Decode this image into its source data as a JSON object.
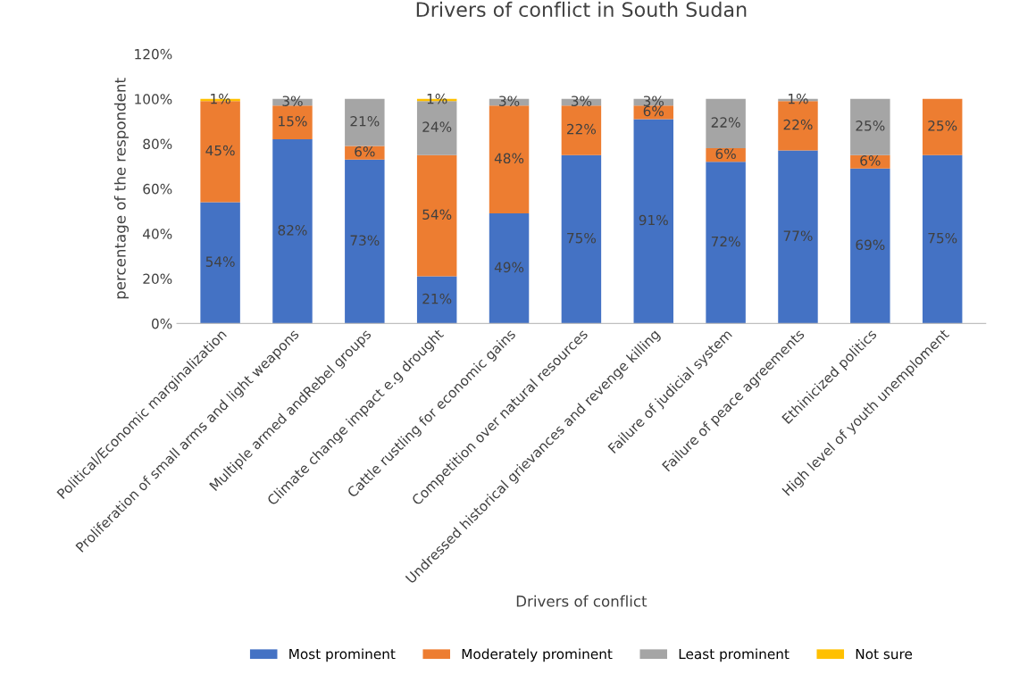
{
  "chart_data": {
    "type": "bar",
    "stacked": true,
    "title": "Drivers of conflict in South Sudan",
    "xlabel": "Drivers of conflict",
    "ylabel": "percentage of the respondent",
    "categories": [
      "Political/Economic marginalization",
      "Proliferation of small arms and light weapons",
      "Multiple armed andRebel groups",
      "Climate change impact e.g drought",
      "Cattle rustling for economic gains",
      "Competition over natural resources",
      "Undressed historical grievances and revenge killing",
      "Failure of judicial system",
      "Failure of peace agreements",
      "Ethinicized politics",
      "High level of youth unemploment"
    ],
    "series": [
      {
        "name": "Most prominent",
        "color": "#4472c4",
        "values": [
          54,
          82,
          73,
          21,
          49,
          75,
          91,
          72,
          77,
          69,
          75
        ],
        "value_labels": [
          "54%",
          "82%",
          "73%",
          "21%",
          "49%",
          "75%",
          "91%",
          "72%",
          "77%",
          "69%",
          "75%"
        ]
      },
      {
        "name": "Moderately prominent",
        "color": "#ed7d31",
        "values": [
          45,
          15,
          6,
          54,
          48,
          22,
          6,
          6,
          22,
          6,
          25
        ],
        "value_labels": [
          "45%",
          "15%",
          "6%",
          "54%",
          "48%",
          "22%",
          "6%",
          "6%",
          "22%",
          "6%",
          "25%"
        ]
      },
      {
        "name": "Least prominent",
        "color": "#a5a5a5",
        "values": [
          null,
          3,
          21,
          24,
          3,
          3,
          3,
          22,
          1,
          25,
          null
        ],
        "value_labels": [
          null,
          "3%",
          "21%",
          "24%",
          "3%",
          "3%",
          "3%",
          "22%",
          "1%",
          "25%",
          null
        ]
      },
      {
        "name": "Not sure",
        "color": "#ffc000",
        "values": [
          1,
          null,
          null,
          1,
          null,
          null,
          null,
          null,
          null,
          null,
          null
        ],
        "value_labels": [
          "1%",
          null,
          null,
          "1%",
          null,
          null,
          null,
          null,
          null,
          null,
          null
        ]
      }
    ],
    "ylim": [
      0,
      120
    ],
    "yticks": [
      {
        "value": 0,
        "label": "0%"
      },
      {
        "value": 20,
        "label": "20%"
      },
      {
        "value": 40,
        "label": "40%"
      },
      {
        "value": 60,
        "label": "60%"
      },
      {
        "value": 80,
        "label": "80%"
      },
      {
        "value": 100,
        "label": "100%"
      },
      {
        "value": 120,
        "label": "120%"
      }
    ],
    "grid": false,
    "legend": "bottom"
  }
}
